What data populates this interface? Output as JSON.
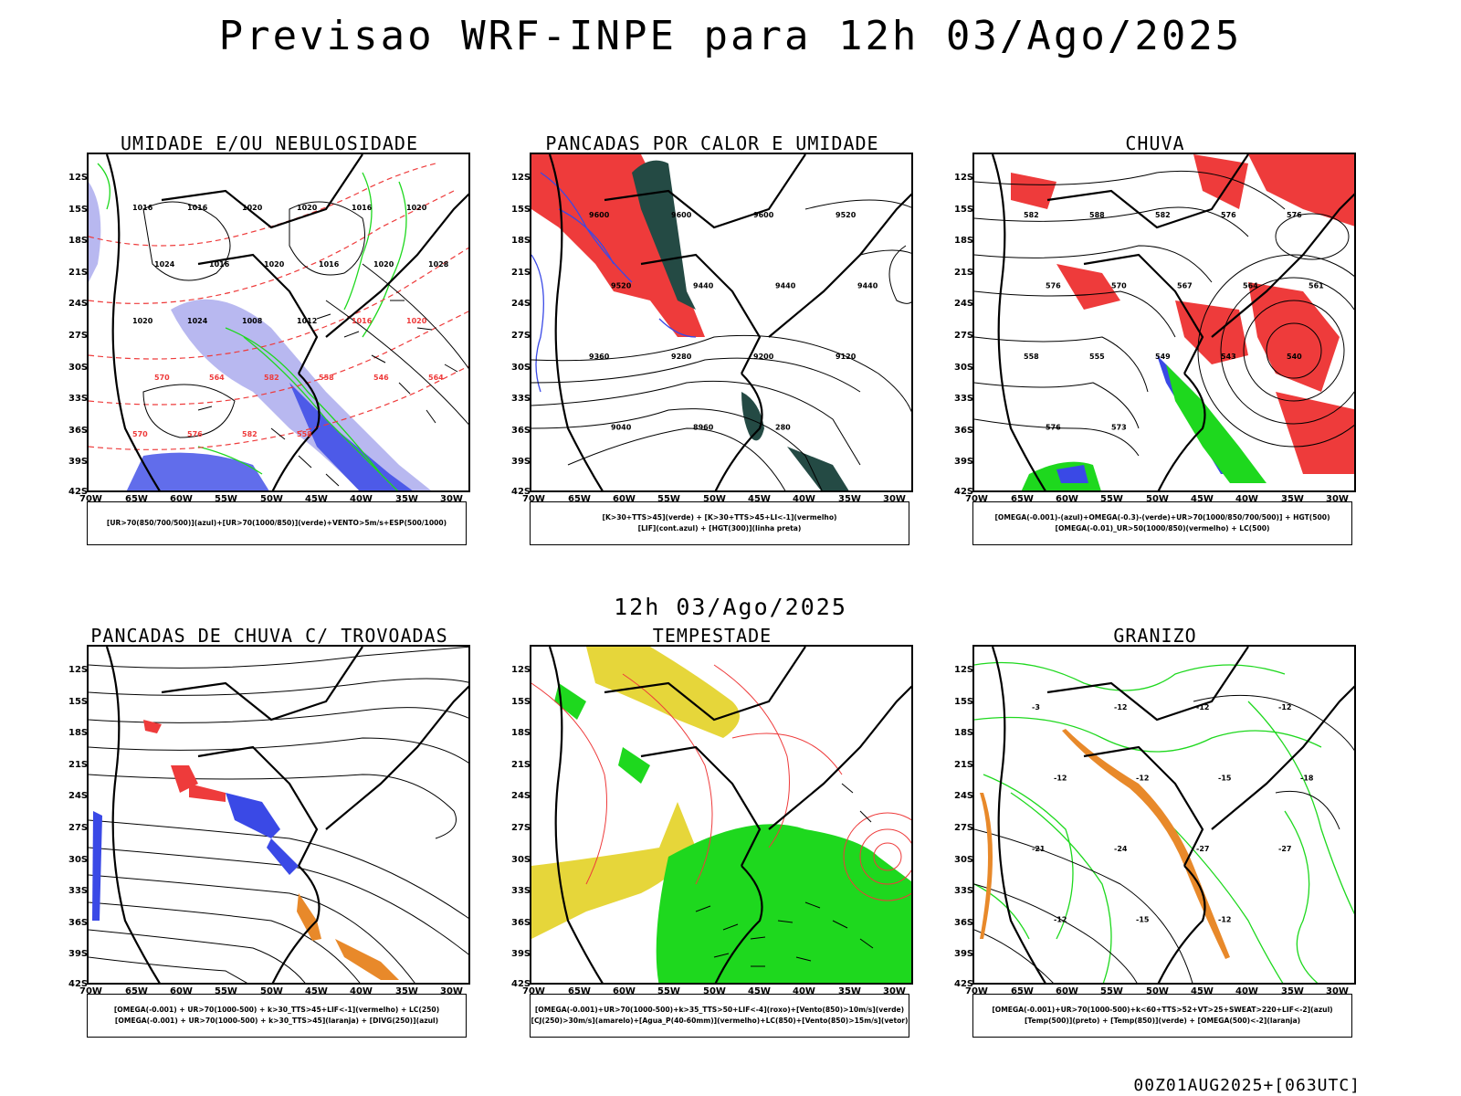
{
  "header": {
    "title": "Previsao WRF-INPE  para 12h 03/Ago/2025"
  },
  "mid_date": "12h 03/Ago/2025",
  "footer": "00Z01AUG2025+[063UTC]",
  "axes": {
    "lat_labels": [
      "12S",
      "15S",
      "18S",
      "21S",
      "24S",
      "27S",
      "30S",
      "33S",
      "36S",
      "39S",
      "42S"
    ],
    "lon_labels": [
      "70W",
      "65W",
      "60W",
      "55W",
      "50W",
      "45W",
      "40W",
      "35W",
      "30W"
    ]
  },
  "colors": {
    "blue": "#3a49e6",
    "green": "#1ed81e",
    "red": "#ee3b3b",
    "orange": "#e8892a",
    "yellow": "#e6d63a",
    "darkgreen": "#244a44",
    "lavender": "#b8b8f0",
    "purple": "#b040c0"
  },
  "panels": [
    {
      "title": "UMIDADE E/OU NEBULOSIDADE",
      "legend": [
        "[UR>70(850/700/500)](azul)+[UR>70(1000/850)](verde)+VENTO>5m/s+ESP(500/1000)"
      ],
      "labels": [
        "1016",
        "1016",
        "1020",
        "1020",
        "1016",
        "1020",
        "1024",
        "1016",
        "1020",
        "1016",
        "1020",
        "1028",
        "1020",
        "1024",
        "1008",
        "1012",
        "1016",
        "1020",
        "570",
        "564",
        "582",
        "558",
        "546",
        "564",
        "570",
        "576",
        "582",
        "558"
      ]
    },
    {
      "title": "PANCADAS POR CALOR E UMIDADE",
      "legend": [
        "[K>30+TTS>45](verde) + [K>30+TTS>45+LI<-1](vermelho)",
        "[LIF](cont.azul) + [HGT(300)](linha preta)"
      ],
      "labels": [
        "9600",
        "9600",
        "9600",
        "9520",
        "9520",
        "9440",
        "9440",
        "9440",
        "9360",
        "9280",
        "9200",
        "9120",
        "9040",
        "8960",
        "280"
      ]
    },
    {
      "title": "CHUVA",
      "legend": [
        "[OMEGA(-0.001)-(azul)+OMEGA(-0.3)-(verde)+UR>70(1000/850/700/500)] + HGT(500)",
        "[OMEGA(-0.01)_UR>50(1000/850)(vermelho) + LC(500)"
      ],
      "labels": [
        "582",
        "588",
        "582",
        "576",
        "576",
        "576",
        "570",
        "567",
        "564",
        "561",
        "558",
        "555",
        "549",
        "543",
        "540",
        "576",
        "573"
      ]
    },
    {
      "title": "PANCADAS DE CHUVA C/ TROVOADAS",
      "legend": [
        "[OMEGA(-0.001) + UR>70(1000-500) + k>30_TTS>45+LIF<-1](vermelho) + LC(250)",
        "[OMEGA(-0.001) + UR>70(1000-500) + k>30_TTS>45](laranja) + [DIVG(250)](azul)"
      ],
      "labels": []
    },
    {
      "title": "TEMPESTADE",
      "legend": [
        "[OMEGA(-0.001)+UR>70(1000-500)+k>35_TTS>50+LIF<-4](roxo)+[Vento(850)>10m/s](verde)",
        "[CJ(250)>30m/s](amarelo)+[Agua_P(40-60mm)](vermelho)+LC(850)+[Vento(850)>15m/s](vetor)"
      ],
      "labels": []
    },
    {
      "title": "GRANIZO",
      "legend": [
        "[OMEGA(-0.001)+UR>70(1000-500)+k<60+TTS>52+VT>25+SWEAT>220+LIF<-2](azul)",
        "[Temp(500)](preto) + [Temp(850)](verde) + [OMEGA(500)<-2](laranja)"
      ],
      "labels": [
        "-3",
        "-12",
        "-12",
        "-12",
        "-12",
        "-12",
        "-15",
        "-18",
        "-21",
        "-24",
        "-27",
        "-27",
        "-12",
        "-15",
        "-12"
      ]
    }
  ]
}
